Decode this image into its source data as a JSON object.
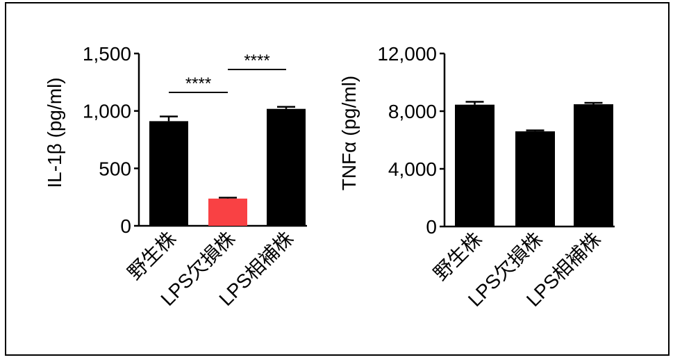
{
  "chart_data": [
    {
      "type": "bar",
      "title": "",
      "xlabel": "",
      "ylabel": "IL-1β (pg/ml)",
      "ylim": [
        0,
        1500
      ],
      "yticks": [
        0,
        500,
        1000,
        1500
      ],
      "ytick_labels": [
        "0",
        "500",
        "1,000",
        "1,500"
      ],
      "categories": [
        "野生株",
        "LPS欠損株",
        "LPS相補株"
      ],
      "values": [
        911,
        237,
        1018
      ],
      "errors": [
        41,
        8,
        18
      ],
      "colors": [
        "#000000",
        "#f94144",
        "#000000"
      ],
      "annotations": [
        {
          "from": 0,
          "to": 1,
          "text": "****"
        },
        {
          "from": 1,
          "to": 2,
          "text": "****"
        }
      ]
    },
    {
      "type": "bar",
      "title": "",
      "xlabel": "",
      "ylabel": "TNFα (pg/ml)",
      "ylim": [
        0,
        12000
      ],
      "yticks": [
        0,
        4000,
        8000,
        12000
      ],
      "ytick_labels": [
        "0",
        "4,000",
        "8,000",
        "12,000"
      ],
      "categories": [
        "野生株",
        "LPS欠損株",
        "LPS相補株"
      ],
      "values": [
        8450,
        6600,
        8480
      ],
      "errors": [
        200,
        70,
        100
      ],
      "colors": [
        "#000000",
        "#000000",
        "#000000"
      ],
      "annotations": []
    }
  ]
}
